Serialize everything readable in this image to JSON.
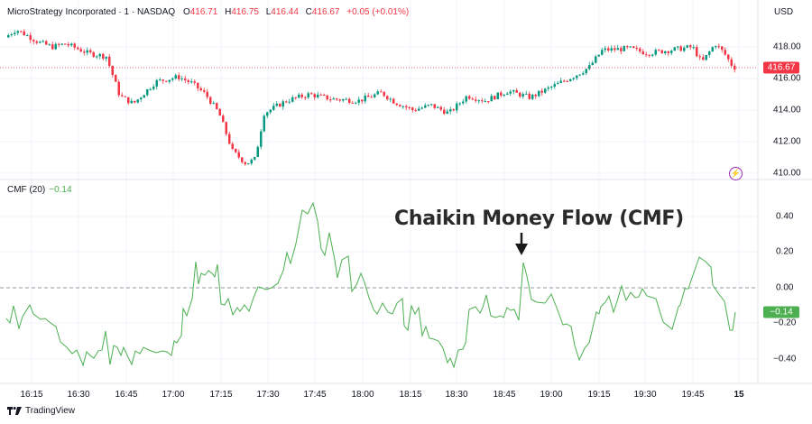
{
  "header": {
    "symbol": "MicroStrategy Incorporated · 1 · NASDAQ",
    "ohlc": [
      {
        "key": "O",
        "value": "416.71"
      },
      {
        "key": "H",
        "value": "416.75"
      },
      {
        "key": "L",
        "value": "416.44"
      },
      {
        "key": "C",
        "value": "416.67"
      }
    ],
    "change": "+0.05 (+0.01%)",
    "currency": "USD"
  },
  "price_axis": {
    "ticks": [
      "418.00",
      "416.00",
      "414.00",
      "412.00",
      "410.00"
    ],
    "last_price_tag": "416.67"
  },
  "indicator": {
    "name": "CMF (20)",
    "value": "−0.14",
    "axis_ticks": [
      "0.40",
      "0.20",
      "0.00",
      "−0.20",
      "−0.40"
    ],
    "last_value_tag": "−0.14"
  },
  "time_axis": {
    "ticks": [
      "16:15",
      "16:30",
      "16:45",
      "17:00",
      "17:15",
      "17:30",
      "17:45",
      "18:00",
      "18:15",
      "18:30",
      "18:45",
      "19:00",
      "19:15",
      "19:30",
      "19:45",
      "15"
    ]
  },
  "annotation": {
    "text": "Chaikin Money Flow (CMF)",
    "arrow": "down-arrow"
  },
  "branding": {
    "label": "TradingView"
  },
  "colors": {
    "up": "#089981",
    "down": "#f23645",
    "cmf_line": "#4caf50",
    "bolt": "#9c27b0",
    "grid": "#f0f3fa"
  },
  "chart_data": [
    {
      "type": "candlestick",
      "title": "MicroStrategy Incorporated · 1 · NASDAQ",
      "ylabel": "USD",
      "ylim": [
        409.5,
        419.5
      ],
      "x": [
        "16:04",
        "16:15",
        "16:30",
        "16:45",
        "17:00",
        "17:15",
        "17:24",
        "17:30",
        "17:45",
        "18:00",
        "18:15",
        "18:30",
        "18:45",
        "19:00",
        "19:15",
        "19:30",
        "19:45",
        "19:58"
      ],
      "close_approx": [
        418.6,
        418.8,
        417.2,
        414.5,
        416.2,
        413.5,
        410.6,
        413.8,
        414.9,
        414.5,
        414.6,
        414.0,
        414.8,
        415.4,
        417.6,
        418.0,
        418.2,
        416.67
      ],
      "last": {
        "open": 416.71,
        "high": 416.75,
        "low": 416.44,
        "close": 416.67,
        "change": 0.05,
        "change_pct": 0.01
      }
    },
    {
      "type": "line",
      "title": "CMF (20)",
      "ylim": [
        -0.45,
        0.48
      ],
      "x": [
        "16:05",
        "16:15",
        "16:30",
        "16:45",
        "17:00",
        "17:05",
        "17:15",
        "17:30",
        "17:45",
        "17:50",
        "18:00",
        "18:15",
        "18:30",
        "18:45",
        "18:50",
        "19:00",
        "19:15",
        "19:30",
        "19:45",
        "19:50",
        "19:57",
        "20:00"
      ],
      "values": [
        -0.12,
        -0.15,
        -0.4,
        -0.38,
        -0.15,
        0.14,
        -0.2,
        0.0,
        0.47,
        0.2,
        0.0,
        -0.22,
        -0.45,
        -0.1,
        0.14,
        -0.2,
        -0.42,
        0.0,
        -0.05,
        0.18,
        -0.25,
        -0.14
      ],
      "reference_line": 0.0,
      "last_value": -0.14
    }
  ]
}
